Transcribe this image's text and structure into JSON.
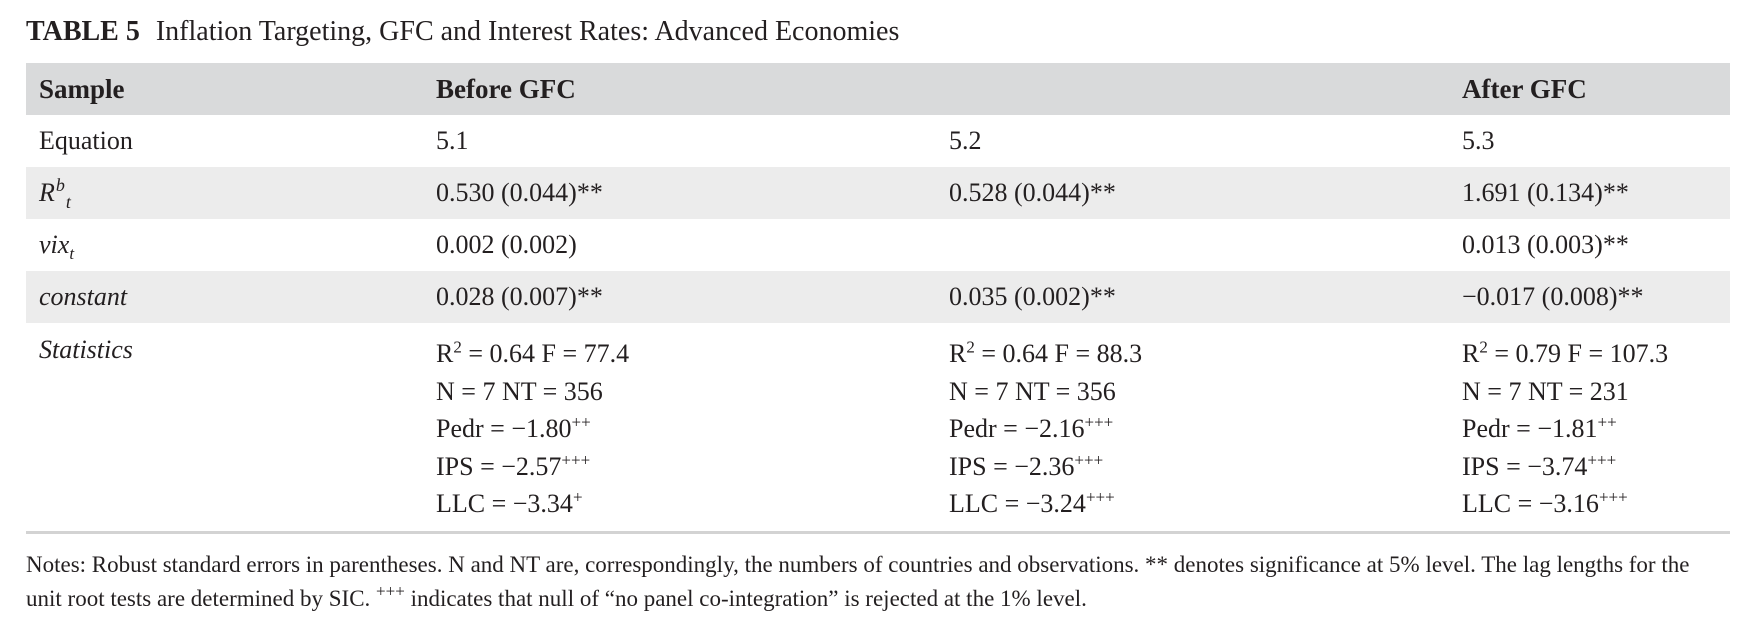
{
  "caption": {
    "label": "TABLE 5",
    "title": "Inflation Targeting, GFC and Interest Rates: Advanced Economies"
  },
  "table": {
    "headers": [
      "Sample",
      "Before GFC",
      "",
      "After GFC"
    ],
    "rows": {
      "equation": {
        "label": "Equation",
        "cells": [
          "5.1",
          "5.2",
          "5.3"
        ]
      },
      "rb": {
        "label_base": "R",
        "label_sup": "b",
        "label_sub": "t",
        "cells": [
          "0.530 (0.044)**",
          "0.528 (0.044)**",
          "1.691 (0.134)**"
        ]
      },
      "vix": {
        "label_base": "vix",
        "label_sub": "t",
        "cells": [
          "0.002 (0.002)",
          "",
          "0.013 (0.003)**"
        ]
      },
      "constant": {
        "label": "constant",
        "cells": [
          "0.028 (0.007)**",
          "0.035 (0.002)**",
          "−0.017 (0.008)**"
        ]
      },
      "statistics": {
        "label": "Statistics",
        "columns": [
          {
            "r2_label": "R",
            "r2_sup": "2",
            "r2_rest": " = 0.64 F = 77.4",
            "n_line": "N = 7 NT = 356",
            "pedr": "Pedr = −1.80",
            "pedr_sup": "++",
            "ips": "IPS = −2.57",
            "ips_sup": "+++",
            "llc": "LLC = −3.34",
            "llc_sup": "+"
          },
          {
            "r2_label": "R",
            "r2_sup": "2",
            "r2_rest": " = 0.64 F = 88.3",
            "n_line": "N = 7 NT = 356",
            "pedr": "Pedr = −2.16",
            "pedr_sup": "+++",
            "ips": "IPS = −2.36",
            "ips_sup": "+++",
            "llc": "LLC = −3.24",
            "llc_sup": "+++"
          },
          {
            "r2_label": "R",
            "r2_sup": "2",
            "r2_rest": " = 0.79 F = 107.3",
            "n_line": "N = 7 NT = 231",
            "pedr": "Pedr = −1.81",
            "pedr_sup": "++",
            "ips": "IPS = −3.74",
            "ips_sup": "+++",
            "llc": "LLC = −3.16",
            "llc_sup": "+++"
          }
        ]
      }
    }
  },
  "notes": {
    "part1": "Notes: Robust standard errors in parentheses. N and NT are, correspondingly, the numbers of countries and observations. ** denotes significance at 5% level. The lag lengths for the unit root tests are determined by SIC. ",
    "sup": "+++",
    "part2": " indicates that null of “no panel co-integration” is rejected at the 1% level."
  }
}
